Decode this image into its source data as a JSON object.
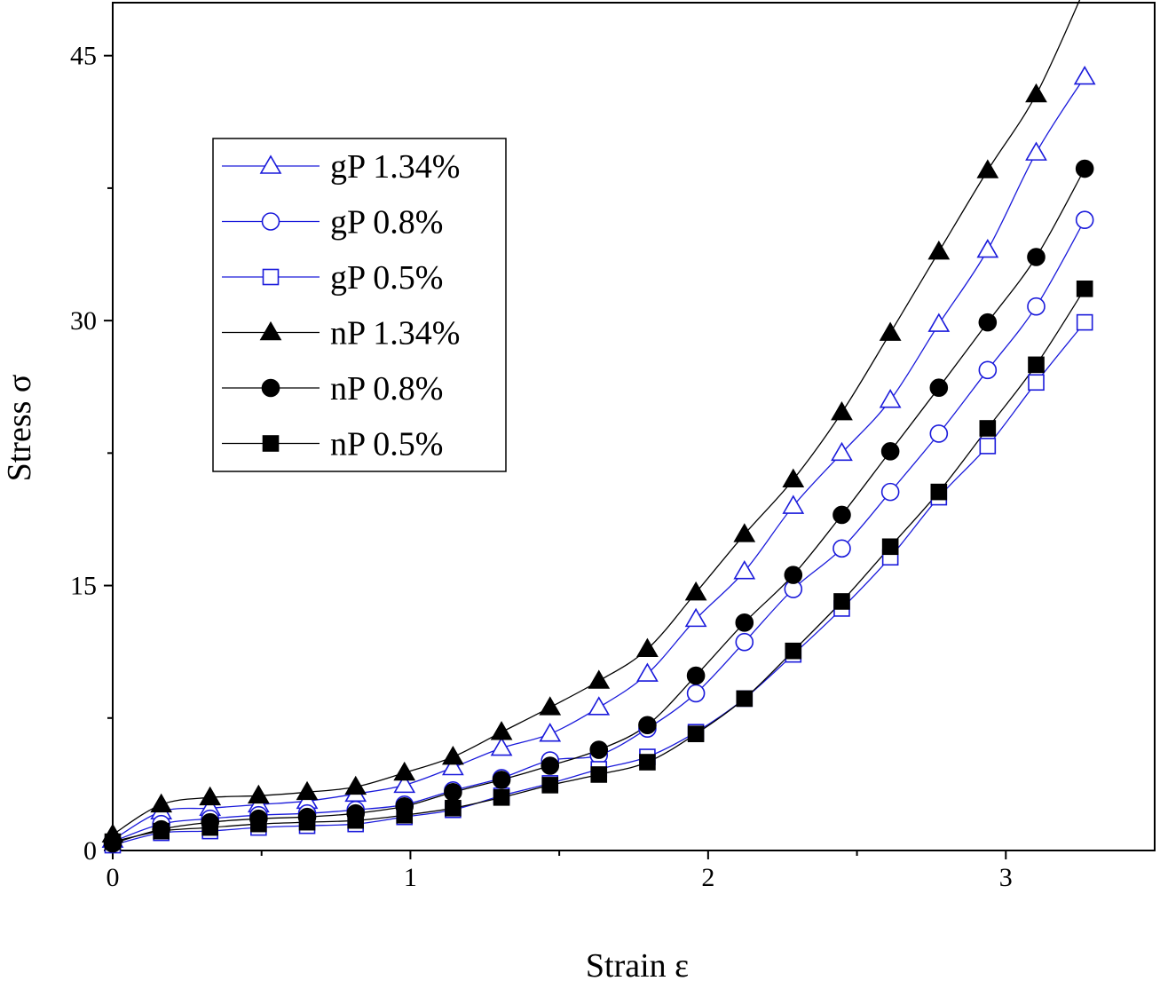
{
  "chart_data": {
    "type": "line",
    "xlabel": "Strain ε",
    "ylabel": "Stress σ",
    "xlim": [
      0,
      3.5
    ],
    "ylim": [
      0,
      48
    ],
    "x_ticks": [
      0,
      1,
      2,
      3
    ],
    "y_ticks": [
      0,
      15,
      30,
      45
    ],
    "x_tick_labels": [
      "0",
      "1",
      "2",
      "3"
    ],
    "y_tick_labels": [
      "0",
      "15",
      "30",
      "45"
    ],
    "grid": false,
    "legend": "top-left",
    "x": [
      0,
      0.163,
      0.327,
      0.49,
      0.653,
      0.816,
      0.98,
      1.143,
      1.306,
      1.469,
      1.633,
      1.796,
      1.959,
      2.122,
      2.286,
      2.449,
      2.612,
      2.775,
      2.939,
      3.102,
      3.265
    ],
    "series": [
      {
        "name": "gP 1.34%",
        "color": "#1a1adb",
        "marker": "triangle",
        "filled": false,
        "values": [
          0.6,
          2.2,
          2.4,
          2.6,
          2.8,
          3.2,
          3.7,
          4.7,
          5.8,
          6.6,
          8.1,
          10.0,
          13.1,
          15.8,
          19.5,
          22.5,
          25.5,
          29.8,
          34.0,
          39.5,
          43.8
        ]
      },
      {
        "name": "gP 0.8%",
        "color": "#1a1adb",
        "marker": "circle",
        "filled": false,
        "values": [
          0.5,
          1.5,
          1.8,
          2.0,
          2.1,
          2.3,
          2.6,
          3.4,
          4.1,
          5.1,
          5.4,
          6.9,
          8.9,
          11.8,
          14.8,
          17.1,
          20.3,
          23.6,
          27.2,
          30.8,
          35.7
        ]
      },
      {
        "name": "gP 0.5%",
        "color": "#1a1adb",
        "marker": "square",
        "filled": false,
        "values": [
          0.3,
          1.0,
          1.1,
          1.3,
          1.4,
          1.5,
          1.9,
          2.3,
          3.1,
          3.8,
          4.6,
          5.3,
          6.7,
          8.6,
          11.1,
          13.7,
          16.6,
          20.0,
          22.9,
          26.5,
          29.9
        ]
      },
      {
        "name": "nP 1.34%",
        "color": "#000000",
        "marker": "triangle",
        "filled": true,
        "values": [
          0.9,
          2.6,
          3.0,
          3.1,
          3.3,
          3.6,
          4.4,
          5.3,
          6.7,
          8.1,
          9.6,
          11.4,
          14.6,
          17.9,
          21.0,
          24.8,
          29.3,
          33.9,
          38.5,
          42.8,
          48.8
        ]
      },
      {
        "name": "nP 0.8%",
        "color": "#000000",
        "marker": "circle",
        "filled": true,
        "values": [
          0.4,
          1.2,
          1.6,
          1.8,
          1.9,
          2.1,
          2.5,
          3.3,
          4.0,
          4.8,
          5.7,
          7.1,
          9.9,
          12.9,
          15.6,
          19.0,
          22.6,
          26.2,
          29.9,
          33.6,
          38.6
        ]
      },
      {
        "name": "nP 0.5%",
        "color": "#000000",
        "marker": "square",
        "filled": true,
        "values": [
          0.5,
          1.1,
          1.3,
          1.5,
          1.6,
          1.7,
          2.0,
          2.4,
          3.0,
          3.7,
          4.3,
          5.0,
          6.6,
          8.6,
          11.3,
          14.1,
          17.2,
          20.3,
          23.9,
          27.5,
          31.8
        ]
      }
    ]
  }
}
